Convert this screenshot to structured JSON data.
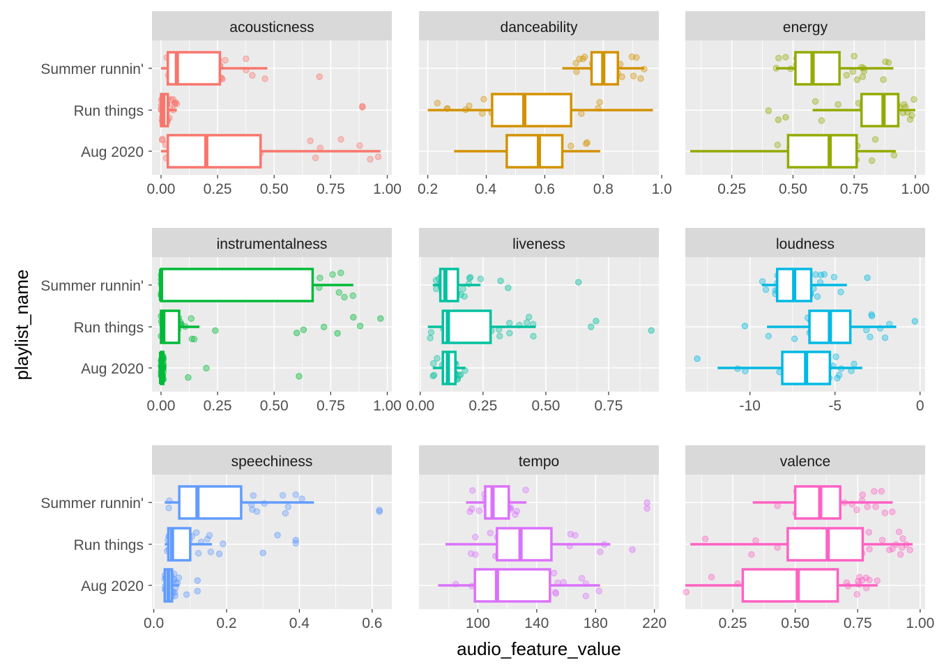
{
  "chart_data": {
    "type": "boxplot-faceted",
    "xlabel": "audio_feature_value",
    "ylabel": "playlist_name",
    "playlists": [
      "Summer runnin'",
      "Run things",
      "Aug 2020"
    ],
    "facets": [
      {
        "name": "acousticness",
        "color": "#F8766D",
        "xlim": [
          -0.04,
          1.02
        ],
        "ticks": [
          0,
          0.25,
          0.5,
          0.75,
          1.0
        ],
        "tick_labels": [
          "0.00",
          "0.25",
          "0.50",
          "0.75",
          "1.00"
        ],
        "stats": [
          {
            "min": 0.0,
            "q1": 0.03,
            "median": 0.07,
            "q3": 0.26,
            "max": 0.47
          },
          {
            "min": 0.0,
            "q1": 0.0,
            "median": 0.01,
            "q3": 0.03,
            "max": 0.07
          },
          {
            "min": 0.0,
            "q1": 0.03,
            "median": 0.2,
            "q3": 0.44,
            "max": 0.97
          }
        ],
        "outliers": [
          [
            0.7
          ],
          [
            0.89,
            0.89
          ],
          []
        ]
      },
      {
        "name": "danceability",
        "color": "#D39200",
        "xlim": [
          0.17,
          0.99
        ],
        "ticks": [
          0.2,
          0.4,
          0.6,
          0.8,
          1.0
        ],
        "tick_labels": [
          "0.2",
          "0.4",
          "0.6",
          "0.8",
          "1.0"
        ],
        "stats": [
          {
            "min": 0.66,
            "q1": 0.76,
            "median": 0.8,
            "q3": 0.85,
            "max": 0.94
          },
          {
            "min": 0.2,
            "q1": 0.42,
            "median": 0.53,
            "q3": 0.69,
            "max": 0.97
          },
          {
            "min": 0.29,
            "q1": 0.47,
            "median": 0.58,
            "q3": 0.66,
            "max": 0.79
          }
        ],
        "outliers": [
          [],
          [],
          []
        ]
      },
      {
        "name": "energy",
        "color": "#93AA00",
        "xlim": [
          0.06,
          1.04
        ],
        "ticks": [
          0.25,
          0.5,
          0.75,
          1.0
        ],
        "tick_labels": [
          "0.25",
          "0.50",
          "0.75",
          "1.00"
        ],
        "stats": [
          {
            "min": 0.43,
            "q1": 0.51,
            "median": 0.58,
            "q3": 0.69,
            "max": 0.91
          },
          {
            "min": 0.58,
            "q1": 0.78,
            "median": 0.87,
            "q3": 0.93,
            "max": 1.0
          },
          {
            "min": 0.08,
            "q1": 0.48,
            "median": 0.65,
            "q3": 0.76,
            "max": 0.92
          }
        ],
        "outliers": [
          [],
          [
            0.4,
            0.44,
            0.47
          ],
          []
        ]
      },
      {
        "name": "instrumentalness",
        "color": "#00BA38",
        "xlim": [
          -0.04,
          1.02
        ],
        "ticks": [
          0,
          0.25,
          0.5,
          0.75,
          1.0
        ],
        "tick_labels": [
          "0.00",
          "0.25",
          "0.50",
          "0.75",
          "1.00"
        ],
        "stats": [
          {
            "min": 0.0,
            "q1": 0.0,
            "median": 0.0,
            "q3": 0.67,
            "max": 0.85
          },
          {
            "min": 0.0,
            "q1": 0.0,
            "median": 0.01,
            "q3": 0.08,
            "max": 0.17
          },
          {
            "min": 0.0,
            "q1": 0.0,
            "median": 0.0,
            "q3": 0.01,
            "max": 0.01
          }
        ],
        "outliers": [
          [],
          [
            0.24,
            0.6,
            0.63,
            0.72,
            0.78,
            0.85,
            0.88,
            0.97
          ],
          [
            0.12,
            0.2,
            0.61
          ]
        ]
      },
      {
        "name": "liveness",
        "color": "#00C19F",
        "xlim": [
          -0.005,
          0.95
        ],
        "ticks": [
          0.0,
          0.25,
          0.5,
          0.75
        ],
        "tick_labels": [
          "0.00",
          "0.25",
          "0.50",
          "0.75"
        ],
        "stats": [
          {
            "min": 0.05,
            "q1": 0.08,
            "median": 0.1,
            "q3": 0.15,
            "max": 0.24
          },
          {
            "min": 0.03,
            "q1": 0.09,
            "median": 0.11,
            "q3": 0.28,
            "max": 0.46
          },
          {
            "min": 0.05,
            "q1": 0.09,
            "median": 0.11,
            "q3": 0.14,
            "max": 0.18
          }
        ],
        "outliers": [
          [
            0.32,
            0.35,
            0.63
          ],
          [
            0.68,
            0.7,
            0.92
          ],
          []
        ]
      },
      {
        "name": "loudness",
        "color": "#00B9E3",
        "xlim": [
          -13.8,
          0.3
        ],
        "ticks": [
          -10,
          -5,
          0
        ],
        "tick_labels": [
          "-10",
          "-5",
          "0"
        ],
        "stats": [
          {
            "min": -9.3,
            "q1": -8.4,
            "median": -7.4,
            "q3": -6.4,
            "max": -4.3
          },
          {
            "min": -9.0,
            "q1": -6.5,
            "median": -5.3,
            "q3": -4.1,
            "max": -1.4
          },
          {
            "min": -11.9,
            "q1": -8.1,
            "median": -6.7,
            "q3": -5.3,
            "max": -3.4
          }
        ],
        "outliers": [
          [
            -3.1
          ],
          [
            -10.3,
            -0.3
          ],
          [
            -13.1
          ]
        ]
      },
      {
        "name": "speechiness",
        "color": "#619CFF",
        "xlim": [
          -0.005,
          0.654
        ],
        "ticks": [
          0.0,
          0.2,
          0.4,
          0.6
        ],
        "tick_labels": [
          "0.0",
          "0.2",
          "0.4",
          "0.6"
        ],
        "stats": [
          {
            "min": 0.03,
            "q1": 0.07,
            "median": 0.12,
            "q3": 0.24,
            "max": 0.44
          },
          {
            "min": 0.03,
            "q1": 0.04,
            "median": 0.05,
            "q3": 0.1,
            "max": 0.16
          },
          {
            "min": 0.03,
            "q1": 0.03,
            "median": 0.04,
            "q3": 0.05,
            "max": 0.07
          }
        ],
        "outliers": [
          [
            0.62,
            0.62
          ],
          [
            0.18,
            0.19,
            0.3,
            0.34,
            0.39,
            0.39
          ],
          [
            0.09,
            0.12,
            0.12
          ]
        ]
      },
      {
        "name": "tempo",
        "color": "#DB72FB",
        "xlim": [
          60,
          223
        ],
        "ticks": [
          100,
          140,
          180,
          220
        ],
        "tick_labels": [
          "100",
          "140",
          "180",
          "220"
        ],
        "stats": [
          {
            "min": 92,
            "q1": 105,
            "median": 110,
            "q3": 121,
            "max": 133
          },
          {
            "min": 78,
            "q1": 113,
            "median": 129,
            "q3": 150,
            "max": 190
          },
          {
            "min": 73,
            "q1": 98,
            "median": 113,
            "q3": 149,
            "max": 183
          }
        ],
        "outliers": [
          [
            215,
            215
          ],
          [
            205
          ],
          []
        ]
      },
      {
        "name": "valence",
        "color": "#FF61C3",
        "xlim": [
          0.06,
          1.02
        ],
        "ticks": [
          0.25,
          0.5,
          0.75,
          1.0
        ],
        "tick_labels": [
          "0.25",
          "0.50",
          "0.75",
          "1.00"
        ],
        "stats": [
          {
            "min": 0.33,
            "q1": 0.5,
            "median": 0.6,
            "q3": 0.68,
            "max": 0.89
          },
          {
            "min": 0.08,
            "q1": 0.47,
            "median": 0.63,
            "q3": 0.77,
            "max": 0.97
          },
          {
            "min": 0.06,
            "q1": 0.29,
            "median": 0.51,
            "q3": 0.67,
            "max": 0.83
          }
        ],
        "outliers": [
          [],
          [],
          []
        ]
      }
    ]
  }
}
